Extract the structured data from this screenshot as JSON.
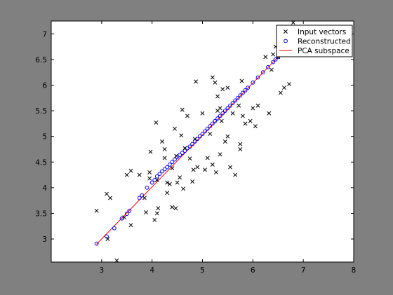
{
  "chart_data": {
    "type": "scatter",
    "title": "",
    "xlabel": "",
    "ylabel": "",
    "xlim": [
      2,
      8
    ],
    "ylim": [
      2.55,
      7.25
    ],
    "xticks": [
      3,
      4,
      5,
      6,
      7,
      8
    ],
    "yticks": [
      3,
      3.5,
      4,
      4.5,
      5,
      5.5,
      6,
      6.5,
      7
    ],
    "ytick_labels": [
      "3",
      "3.5",
      "4",
      "4.5",
      "5",
      "5.5",
      "6",
      "6.5",
      "7"
    ],
    "xtick_labels": [
      "3",
      "4",
      "5",
      "6",
      "7",
      "8"
    ],
    "grid": false,
    "legend_position": "top-right",
    "colors": {
      "figure_background": "#808080",
      "axes_background": "#ffffff",
      "input": "#000000",
      "reconstructed": "#0000ff",
      "subspace": "#ff0000"
    },
    "series": [
      {
        "name": "Input vectors",
        "marker": "x",
        "points": [
          [
            2.9,
            3.55
          ],
          [
            3.1,
            3.88
          ],
          [
            3.12,
            3.0
          ],
          [
            3.17,
            3.8
          ],
          [
            3.3,
            2.58
          ],
          [
            3.45,
            3.42
          ],
          [
            3.5,
            4.25
          ],
          [
            3.58,
            4.33
          ],
          [
            3.58,
            3.27
          ],
          [
            3.75,
            4.25
          ],
          [
            3.85,
            3.8
          ],
          [
            3.88,
            3.52
          ],
          [
            3.95,
            4.18
          ],
          [
            3.95,
            4.3
          ],
          [
            3.97,
            4.7
          ],
          [
            4.05,
            3.37
          ],
          [
            4.1,
            3.5
          ],
          [
            4.1,
            4.15
          ],
          [
            4.12,
            3.6
          ],
          [
            4.08,
            5.27
          ],
          [
            4.2,
            4.9
          ],
          [
            4.25,
            4.75
          ],
          [
            4.25,
            4.58
          ],
          [
            4.3,
            3.9
          ],
          [
            4.3,
            4.1
          ],
          [
            4.35,
            4.07
          ],
          [
            4.4,
            3.62
          ],
          [
            4.47,
            3.6
          ],
          [
            4.4,
            4.38
          ],
          [
            4.5,
            4.1
          ],
          [
            4.45,
            5.15
          ],
          [
            4.48,
            4.62
          ],
          [
            4.55,
            4.2
          ],
          [
            4.58,
            5.02
          ],
          [
            4.6,
            5.52
          ],
          [
            4.62,
            3.98
          ],
          [
            4.65,
            4.77
          ],
          [
            4.7,
            5.4
          ],
          [
            4.75,
            4.57
          ],
          [
            4.8,
            4.12
          ],
          [
            4.82,
            4.35
          ],
          [
            4.85,
            4.95
          ],
          [
            4.87,
            6.07
          ],
          [
            4.9,
            4.4
          ],
          [
            5.0,
            5.45
          ],
          [
            5.05,
            4.35
          ],
          [
            5.1,
            4.58
          ],
          [
            5.15,
            5.05
          ],
          [
            5.2,
            4.45
          ],
          [
            5.2,
            6.15
          ],
          [
            5.25,
            6.05
          ],
          [
            5.27,
            4.3
          ],
          [
            5.3,
            5.5
          ],
          [
            5.3,
            5.78
          ],
          [
            5.35,
            5.55
          ],
          [
            5.35,
            4.65
          ],
          [
            5.38,
            5.3
          ],
          [
            5.4,
            5.92
          ],
          [
            5.45,
            4.9
          ],
          [
            5.5,
            5.95
          ],
          [
            5.5,
            5.0
          ],
          [
            5.55,
            4.4
          ],
          [
            5.6,
            5.45
          ],
          [
            5.65,
            4.25
          ],
          [
            5.72,
            5.6
          ],
          [
            5.75,
            4.85
          ],
          [
            5.75,
            4.75
          ],
          [
            5.78,
            6.08
          ],
          [
            5.8,
            5.4
          ],
          [
            5.85,
            5.25
          ],
          [
            5.95,
            5.3
          ],
          [
            6.0,
            5.55
          ],
          [
            6.05,
            5.2
          ],
          [
            6.1,
            5.6
          ],
          [
            6.25,
            6.55
          ],
          [
            6.32,
            5.45
          ],
          [
            6.37,
            6.3
          ],
          [
            6.4,
            6.6
          ],
          [
            6.45,
            6.75
          ],
          [
            6.5,
            6.55
          ],
          [
            6.55,
            5.85
          ],
          [
            6.62,
            5.95
          ],
          [
            6.65,
            6.75
          ],
          [
            6.72,
            6.02
          ],
          [
            6.8,
            7.22
          ],
          [
            6.82,
            6.7
          ]
        ]
      },
      {
        "name": "Reconstructed",
        "marker": "o",
        "points": [
          [
            2.9,
            2.91
          ],
          [
            3.1,
            3.05
          ],
          [
            3.25,
            3.21
          ],
          [
            3.4,
            3.4
          ],
          [
            3.5,
            3.49
          ],
          [
            3.55,
            3.55
          ],
          [
            3.75,
            3.8
          ],
          [
            3.8,
            3.85
          ],
          [
            3.9,
            4.0
          ],
          [
            4.0,
            4.1
          ],
          [
            4.05,
            4.15
          ],
          [
            4.1,
            4.22
          ],
          [
            4.15,
            4.27
          ],
          [
            4.2,
            4.32
          ],
          [
            4.25,
            4.36
          ],
          [
            4.3,
            4.4
          ],
          [
            4.35,
            4.45
          ],
          [
            4.4,
            4.5
          ],
          [
            4.45,
            4.55
          ],
          [
            4.5,
            4.6
          ],
          [
            4.55,
            4.64
          ],
          [
            4.6,
            4.68
          ],
          [
            4.65,
            4.72
          ],
          [
            4.7,
            4.77
          ],
          [
            4.75,
            4.8
          ],
          [
            4.8,
            4.85
          ],
          [
            4.85,
            4.9
          ],
          [
            4.9,
            4.95
          ],
          [
            4.95,
            5.0
          ],
          [
            5.0,
            5.05
          ],
          [
            5.05,
            5.1
          ],
          [
            5.1,
            5.15
          ],
          [
            5.15,
            5.2
          ],
          [
            5.2,
            5.25
          ],
          [
            5.25,
            5.3
          ],
          [
            5.3,
            5.35
          ],
          [
            5.35,
            5.4
          ],
          [
            5.4,
            5.45
          ],
          [
            5.45,
            5.5
          ],
          [
            5.5,
            5.55
          ],
          [
            5.55,
            5.6
          ],
          [
            5.6,
            5.65
          ],
          [
            5.65,
            5.7
          ],
          [
            5.7,
            5.75
          ],
          [
            5.75,
            5.8
          ],
          [
            5.8,
            5.85
          ],
          [
            5.85,
            5.9
          ],
          [
            5.9,
            5.95
          ],
          [
            6.0,
            6.05
          ],
          [
            6.1,
            6.15
          ],
          [
            6.2,
            6.25
          ],
          [
            6.3,
            6.35
          ],
          [
            6.4,
            6.45
          ],
          [
            6.45,
            6.5
          ],
          [
            6.5,
            6.55
          ],
          [
            6.55,
            6.6
          ]
        ]
      },
      {
        "name": "PCA subspace",
        "marker": "line",
        "points": [
          [
            2.9,
            2.9
          ],
          [
            6.6,
            6.65
          ]
        ]
      }
    ]
  }
}
